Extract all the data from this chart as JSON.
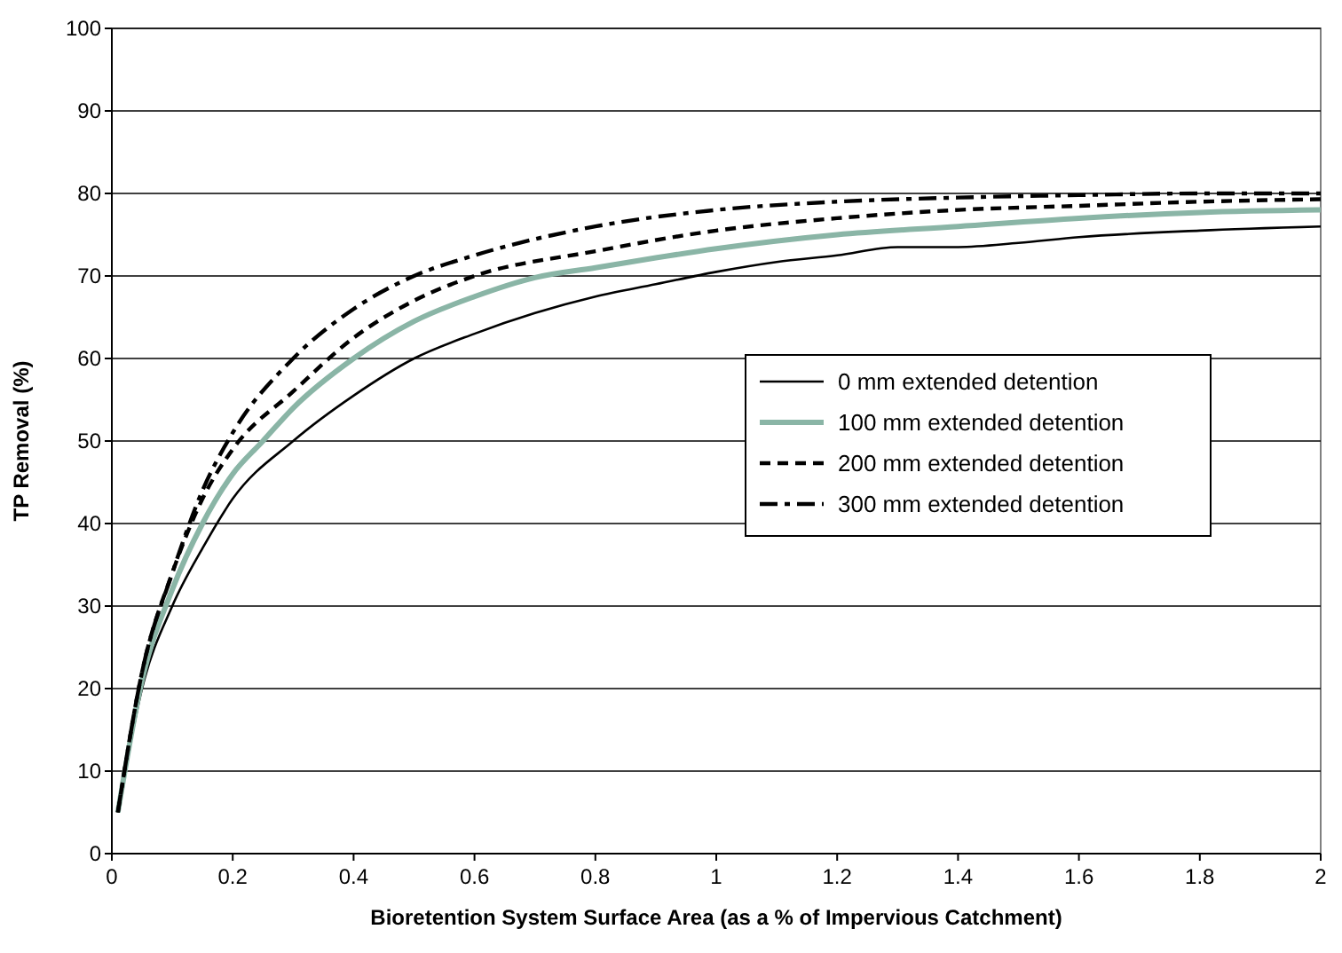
{
  "chart_data": {
    "type": "line",
    "xlabel": "Bioretention System Surface Area (as a % of Impervious Catchment)",
    "ylabel": "TP Removal (%)",
    "xlim": [
      0,
      2
    ],
    "xticks": [
      0,
      0.2,
      0.4,
      0.6,
      0.8,
      1,
      1.2,
      1.4,
      1.6,
      1.8,
      2
    ],
    "ylim": [
      0,
      100
    ],
    "yticks": [
      0,
      10,
      20,
      30,
      40,
      50,
      60,
      70,
      80,
      90,
      100
    ],
    "grid": "y",
    "legend": "right",
    "series": [
      {
        "name": "0 mm extended detention",
        "color": "#000000",
        "line_style": "solid",
        "x": [
          0.01,
          0.05,
          0.1,
          0.15,
          0.2,
          0.3,
          0.4,
          0.5,
          0.6,
          0.7,
          0.8,
          0.9,
          1.0,
          1.1,
          1.2,
          1.3,
          1.4,
          1.5,
          1.6,
          1.8,
          2.0
        ],
        "values": [
          5,
          20,
          30,
          37,
          43,
          50,
          55.5,
          60,
          63,
          65.5,
          67.5,
          69,
          70.5,
          71.7,
          72.5,
          73.5,
          73.5,
          74,
          74.7,
          75.5,
          76
        ]
      },
      {
        "name": "100 mm extended detention",
        "color": "#8ab5a6",
        "line_style": "solid",
        "x": [
          0.01,
          0.05,
          0.1,
          0.15,
          0.2,
          0.25,
          0.3,
          0.4,
          0.5,
          0.6,
          0.7,
          0.8,
          0.9,
          1.0,
          1.2,
          1.4,
          1.6,
          1.8,
          2.0
        ],
        "values": [
          5,
          21,
          32,
          40,
          46,
          50,
          54,
          60,
          64.5,
          67.5,
          69.8,
          71,
          72.2,
          73.3,
          75,
          76,
          77,
          77.7,
          78
        ]
      },
      {
        "name": "200 mm extended detention",
        "color": "#000000",
        "line_style": "dashed",
        "x": [
          0.01,
          0.05,
          0.1,
          0.15,
          0.2,
          0.3,
          0.4,
          0.5,
          0.6,
          0.8,
          1.0,
          1.2,
          1.4,
          1.6,
          1.8,
          2.0
        ],
        "values": [
          5,
          22,
          34,
          43,
          49,
          56,
          62.5,
          67,
          70,
          73,
          75.5,
          77,
          78,
          78.5,
          79,
          79.3
        ]
      },
      {
        "name": "300 mm extended detention",
        "color": "#000000",
        "line_style": "dashdot",
        "x": [
          0.01,
          0.05,
          0.1,
          0.15,
          0.2,
          0.3,
          0.4,
          0.5,
          0.6,
          0.8,
          1.0,
          1.2,
          1.4,
          1.6,
          1.8,
          2.0
        ],
        "values": [
          5,
          22,
          34,
          44,
          51,
          60,
          66,
          70,
          72.5,
          76,
          78,
          79,
          79.5,
          79.8,
          80,
          80
        ]
      }
    ]
  }
}
